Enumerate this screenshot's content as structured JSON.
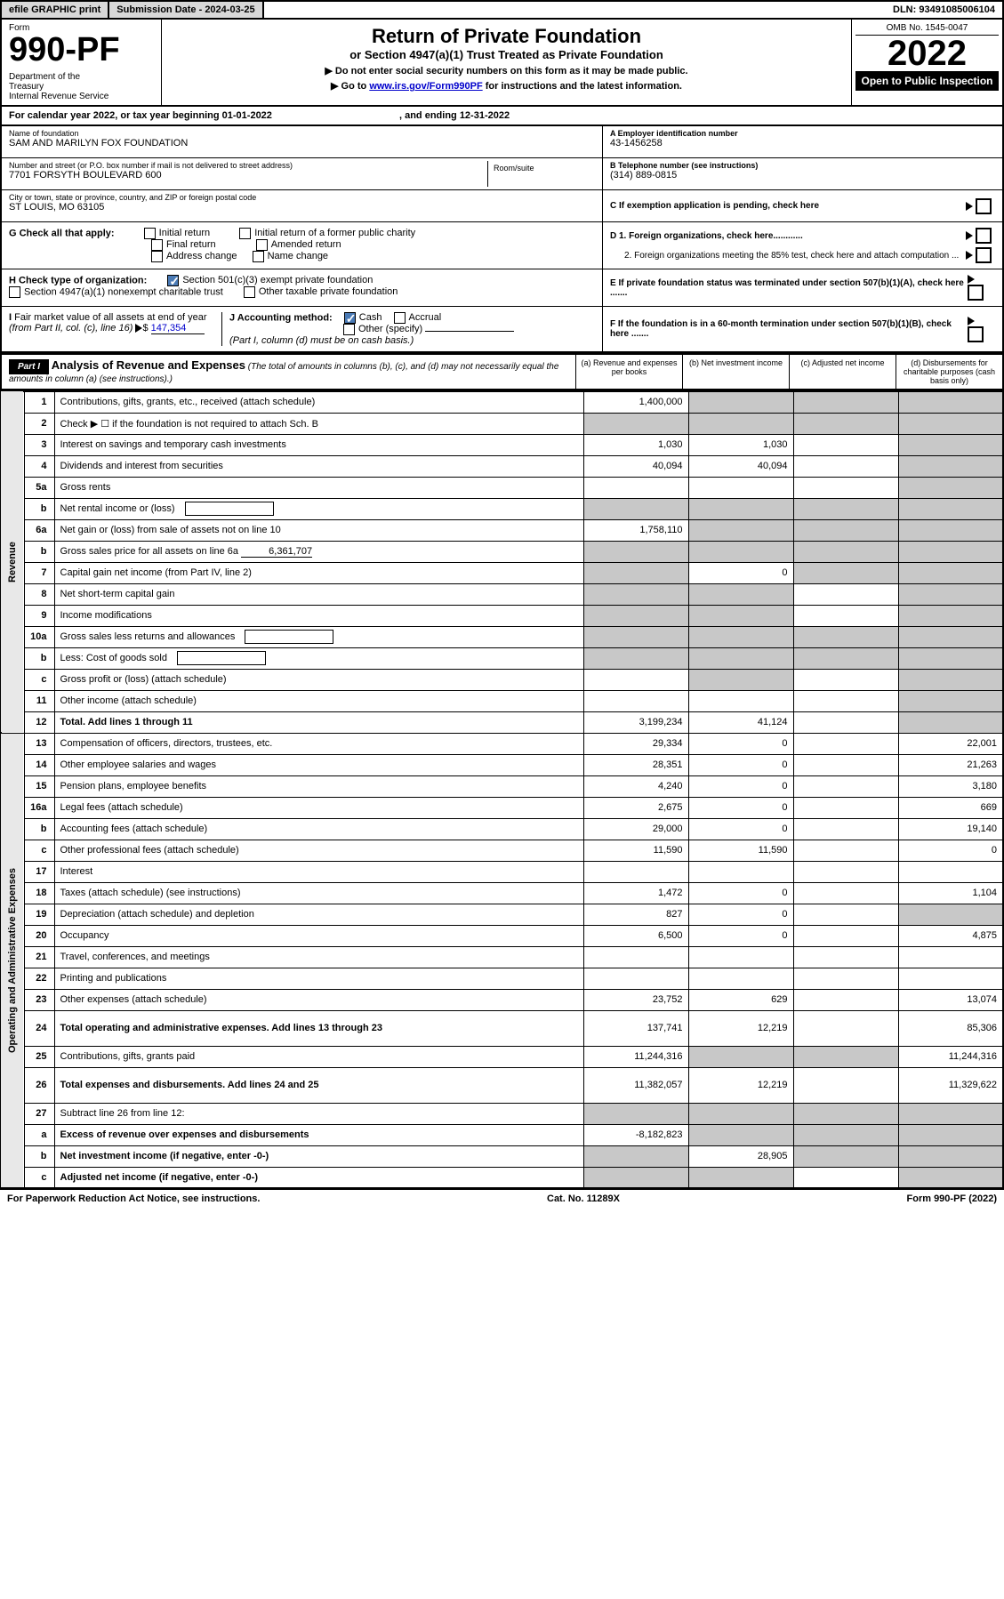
{
  "topbar": {
    "efile": "efile GRAPHIC print",
    "submission": "Submission Date - 2024-03-25",
    "dln": "DLN: 93491085006104"
  },
  "header": {
    "form_label": "Form",
    "form_number": "990-PF",
    "dept": "Department of the Treasury\nInternal Revenue Service",
    "title": "Return of Private Foundation",
    "subtitle": "or Section 4947(a)(1) Trust Treated as Private Foundation",
    "note1": "▶ Do not enter social security numbers on this form as it may be made public.",
    "note2_pre": "▶ Go to ",
    "note2_link": "www.irs.gov/Form990PF",
    "note2_post": " for instructions and the latest information.",
    "omb": "OMB No. 1545-0047",
    "year": "2022",
    "open": "Open to Public Inspection"
  },
  "calyear": {
    "text": "For calendar year 2022, or tax year beginning 01-01-2022",
    "ending": ", and ending 12-31-2022"
  },
  "info": {
    "name_lbl": "Name of foundation",
    "name": "SAM AND MARILYN FOX FOUNDATION",
    "addr_lbl": "Number and street (or P.O. box number if mail is not delivered to street address)",
    "addr": "7701 FORSYTH BOULEVARD 600",
    "room_lbl": "Room/suite",
    "city_lbl": "City or town, state or province, country, and ZIP or foreign postal code",
    "city": "ST LOUIS, MO  63105",
    "ein_lbl": "A Employer identification number",
    "ein": "43-1456258",
    "phone_lbl": "B Telephone number (see instructions)",
    "phone": "(314) 889-0815",
    "c_lbl": "C If exemption application is pending, check here"
  },
  "checks": {
    "g_lbl": "G Check all that apply:",
    "g_opts": [
      "Initial return",
      "Initial return of a former public charity",
      "Final return",
      "Amended return",
      "Address change",
      "Name change"
    ],
    "h_lbl": "H Check type of organization:",
    "h_opt1": "Section 501(c)(3) exempt private foundation",
    "h_opt2": "Section 4947(a)(1) nonexempt charitable trust",
    "h_opt3": "Other taxable private foundation",
    "i_lbl": "I Fair market value of all assets at end of year (from Part II, col. (c), line 16) ▶$",
    "i_val": "147,354",
    "j_lbl": "J Accounting method:",
    "j_opts": [
      "Cash",
      "Accrual",
      "Other (specify)"
    ],
    "j_note": "(Part I, column (d) must be on cash basis.)",
    "d1": "D 1. Foreign organizations, check here............",
    "d2": "2. Foreign organizations meeting the 85% test, check here and attach computation ...",
    "e": "E  If private foundation status was terminated under section 507(b)(1)(A), check here .......",
    "f": "F  If the foundation is in a 60-month termination under section 507(b)(1)(B), check here .......",
    "j_checked": "Cash",
    "h_checked": "501c3"
  },
  "part1": {
    "label": "Part I",
    "title": "Analysis of Revenue and Expenses",
    "title_note": "(The total of amounts in columns (b), (c), and (d) may not necessarily equal the amounts in column (a) (see instructions).)",
    "col_a": "(a) Revenue and expenses per books",
    "col_b": "(b) Net investment income",
    "col_c": "(c) Adjusted net income",
    "col_d": "(d) Disbursements for charitable purposes (cash basis only)"
  },
  "vert": {
    "revenue": "Revenue",
    "expenses": "Operating and Administrative Expenses"
  },
  "rows": [
    {
      "n": "1",
      "desc": "Contributions, gifts, grants, etc., received (attach schedule)",
      "a": "1,400,000",
      "b": "",
      "c": "",
      "d": "",
      "grey_b": true,
      "grey_c": true,
      "grey_d": true
    },
    {
      "n": "2",
      "desc": "Check ▶ ☐ if the foundation is not required to attach Sch. B",
      "a": "",
      "b": "",
      "c": "",
      "d": "",
      "grey_a": true,
      "grey_b": true,
      "grey_c": true,
      "grey_d": true,
      "is_bold_not": true
    },
    {
      "n": "3",
      "desc": "Interest on savings and temporary cash investments",
      "a": "1,030",
      "b": "1,030",
      "c": "",
      "d": "",
      "grey_d": true
    },
    {
      "n": "4",
      "desc": "Dividends and interest from securities",
      "a": "40,094",
      "b": "40,094",
      "c": "",
      "d": "",
      "grey_d": true
    },
    {
      "n": "5a",
      "desc": "Gross rents",
      "a": "",
      "b": "",
      "c": "",
      "d": "",
      "grey_d": true
    },
    {
      "n": "b",
      "desc": "Net rental income or (loss)",
      "a": "",
      "b": "",
      "c": "",
      "d": "",
      "grey_a": true,
      "grey_b": true,
      "grey_c": true,
      "grey_d": true,
      "inline_field": true
    },
    {
      "n": "6a",
      "desc": "Net gain or (loss) from sale of assets not on line 10",
      "a": "1,758,110",
      "b": "",
      "c": "",
      "d": "",
      "grey_b": true,
      "grey_c": true,
      "grey_d": true
    },
    {
      "n": "b",
      "desc": "Gross sales price for all assets on line 6a",
      "a": "",
      "b": "",
      "c": "",
      "d": "",
      "grey_a": true,
      "grey_b": true,
      "grey_c": true,
      "grey_d": true,
      "inline_val": "6,361,707"
    },
    {
      "n": "7",
      "desc": "Capital gain net income (from Part IV, line 2)",
      "a": "",
      "b": "0",
      "c": "",
      "d": "",
      "grey_a": true,
      "grey_c": true,
      "grey_d": true
    },
    {
      "n": "8",
      "desc": "Net short-term capital gain",
      "a": "",
      "b": "",
      "c": "",
      "d": "",
      "grey_a": true,
      "grey_b": true,
      "grey_d": true
    },
    {
      "n": "9",
      "desc": "Income modifications",
      "a": "",
      "b": "",
      "c": "",
      "d": "",
      "grey_a": true,
      "grey_b": true,
      "grey_d": true
    },
    {
      "n": "10a",
      "desc": "Gross sales less returns and allowances",
      "a": "",
      "b": "",
      "c": "",
      "d": "",
      "grey_a": true,
      "grey_b": true,
      "grey_c": true,
      "grey_d": true,
      "inline_field": true
    },
    {
      "n": "b",
      "desc": "Less: Cost of goods sold",
      "a": "",
      "b": "",
      "c": "",
      "d": "",
      "grey_a": true,
      "grey_b": true,
      "grey_c": true,
      "grey_d": true,
      "inline_field": true
    },
    {
      "n": "c",
      "desc": "Gross profit or (loss) (attach schedule)",
      "a": "",
      "b": "",
      "c": "",
      "d": "",
      "grey_b": true,
      "grey_d": true
    },
    {
      "n": "11",
      "desc": "Other income (attach schedule)",
      "a": "",
      "b": "",
      "c": "",
      "d": "",
      "grey_d": true
    },
    {
      "n": "12",
      "desc": "Total. Add lines 1 through 11",
      "a": "3,199,234",
      "b": "41,124",
      "c": "",
      "d": "",
      "grey_d": true,
      "bold": true
    },
    {
      "n": "13",
      "desc": "Compensation of officers, directors, trustees, etc.",
      "a": "29,334",
      "b": "0",
      "c": "",
      "d": "22,001"
    },
    {
      "n": "14",
      "desc": "Other employee salaries and wages",
      "a": "28,351",
      "b": "0",
      "c": "",
      "d": "21,263"
    },
    {
      "n": "15",
      "desc": "Pension plans, employee benefits",
      "a": "4,240",
      "b": "0",
      "c": "",
      "d": "3,180"
    },
    {
      "n": "16a",
      "desc": "Legal fees (attach schedule)",
      "a": "2,675",
      "b": "0",
      "c": "",
      "d": "669"
    },
    {
      "n": "b",
      "desc": "Accounting fees (attach schedule)",
      "a": "29,000",
      "b": "0",
      "c": "",
      "d": "19,140"
    },
    {
      "n": "c",
      "desc": "Other professional fees (attach schedule)",
      "a": "11,590",
      "b": "11,590",
      "c": "",
      "d": "0"
    },
    {
      "n": "17",
      "desc": "Interest",
      "a": "",
      "b": "",
      "c": "",
      "d": ""
    },
    {
      "n": "18",
      "desc": "Taxes (attach schedule) (see instructions)",
      "a": "1,472",
      "b": "0",
      "c": "",
      "d": "1,104"
    },
    {
      "n": "19",
      "desc": "Depreciation (attach schedule) and depletion",
      "a": "827",
      "b": "0",
      "c": "",
      "d": "",
      "grey_d": true
    },
    {
      "n": "20",
      "desc": "Occupancy",
      "a": "6,500",
      "b": "0",
      "c": "",
      "d": "4,875"
    },
    {
      "n": "21",
      "desc": "Travel, conferences, and meetings",
      "a": "",
      "b": "",
      "c": "",
      "d": ""
    },
    {
      "n": "22",
      "desc": "Printing and publications",
      "a": "",
      "b": "",
      "c": "",
      "d": ""
    },
    {
      "n": "23",
      "desc": "Other expenses (attach schedule)",
      "a": "23,752",
      "b": "629",
      "c": "",
      "d": "13,074"
    },
    {
      "n": "24",
      "desc": "Total operating and administrative expenses. Add lines 13 through 23",
      "a": "137,741",
      "b": "12,219",
      "c": "",
      "d": "85,306",
      "bold": true,
      "tall": true
    },
    {
      "n": "25",
      "desc": "Contributions, gifts, grants paid",
      "a": "11,244,316",
      "b": "",
      "c": "",
      "d": "11,244,316",
      "grey_b": true,
      "grey_c": true
    },
    {
      "n": "26",
      "desc": "Total expenses and disbursements. Add lines 24 and 25",
      "a": "11,382,057",
      "b": "12,219",
      "c": "",
      "d": "11,329,622",
      "bold": true,
      "tall": true
    },
    {
      "n": "27",
      "desc": "Subtract line 26 from line 12:",
      "a": "",
      "b": "",
      "c": "",
      "d": "",
      "grey_a": true,
      "grey_b": true,
      "grey_c": true,
      "grey_d": true
    },
    {
      "n": "a",
      "desc": "Excess of revenue over expenses and disbursements",
      "a": "-8,182,823",
      "b": "",
      "c": "",
      "d": "",
      "grey_b": true,
      "grey_c": true,
      "grey_d": true,
      "bold": true
    },
    {
      "n": "b",
      "desc": "Net investment income (if negative, enter -0-)",
      "a": "",
      "b": "28,905",
      "c": "",
      "d": "",
      "grey_a": true,
      "grey_c": true,
      "grey_d": true,
      "bold": true
    },
    {
      "n": "c",
      "desc": "Adjusted net income (if negative, enter -0-)",
      "a": "",
      "b": "",
      "c": "",
      "d": "",
      "grey_a": true,
      "grey_b": true,
      "grey_d": true,
      "bold": true
    }
  ],
  "footer": {
    "left": "For Paperwork Reduction Act Notice, see instructions.",
    "center": "Cat. No. 11289X",
    "right": "Form 990-PF (2022)"
  },
  "colors": {
    "grey_cell": "#c8c8c8",
    "vert_bg": "#e8e8e8",
    "link": "#0000cc",
    "check_blue": "#4a7ab5"
  }
}
